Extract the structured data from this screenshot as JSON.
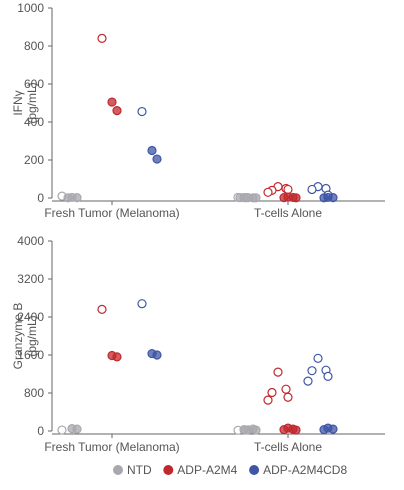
{
  "chart_data": [
    {
      "type": "scatter",
      "title": "",
      "ylabel_lines": [
        "IFNγ",
        "(pg/mL)"
      ],
      "ylim": [
        0,
        1000
      ],
      "yticks": [
        0,
        200,
        400,
        600,
        800,
        1000
      ],
      "categories": [
        "Fresh Tumor (Melanoma)",
        "T-cells Alone"
      ],
      "series": [
        {
          "name": "NTD",
          "points": [
            {
              "category": "Fresh Tumor (Melanoma)",
              "y": 10,
              "filled": false
            },
            {
              "category": "Fresh Tumor (Melanoma)",
              "y": 3,
              "filled": true
            },
            {
              "category": "Fresh Tumor (Melanoma)",
              "y": 2,
              "filled": true
            },
            {
              "category": "Fresh Tumor (Melanoma)",
              "y": 1,
              "filled": true
            },
            {
              "category": "T-cells Alone",
              "y": 3,
              "filled": false
            },
            {
              "category": "T-cells Alone",
              "y": 2,
              "filled": false
            },
            {
              "category": "T-cells Alone",
              "y": 2,
              "filled": true
            },
            {
              "category": "T-cells Alone",
              "y": 1,
              "filled": true
            },
            {
              "category": "T-cells Alone",
              "y": 2,
              "filled": true
            },
            {
              "category": "T-cells Alone",
              "y": 1,
              "filled": true
            },
            {
              "category": "T-cells Alone",
              "y": 2,
              "filled": true
            }
          ]
        },
        {
          "name": "ADP-A2M4",
          "points": [
            {
              "category": "Fresh Tumor (Melanoma)",
              "y": 840,
              "filled": false
            },
            {
              "category": "Fresh Tumor (Melanoma)",
              "y": 505,
              "filled": true
            },
            {
              "category": "Fresh Tumor (Melanoma)",
              "y": 460,
              "filled": true
            },
            {
              "category": "T-cells Alone",
              "y": 60,
              "filled": false
            },
            {
              "category": "T-cells Alone",
              "y": 50,
              "filled": false
            },
            {
              "category": "T-cells Alone",
              "y": 40,
              "filled": false
            },
            {
              "category": "T-cells Alone",
              "y": 45,
              "filled": false
            },
            {
              "category": "T-cells Alone",
              "y": 30,
              "filled": false
            },
            {
              "category": "T-cells Alone",
              "y": 5,
              "filled": true
            },
            {
              "category": "T-cells Alone",
              "y": 3,
              "filled": true
            },
            {
              "category": "T-cells Alone",
              "y": 2,
              "filled": true
            },
            {
              "category": "T-cells Alone",
              "y": 1,
              "filled": true
            }
          ]
        },
        {
          "name": "ADP-A2M4CD8",
          "points": [
            {
              "category": "Fresh Tumor (Melanoma)",
              "y": 455,
              "filled": false
            },
            {
              "category": "Fresh Tumor (Melanoma)",
              "y": 250,
              "filled": true
            },
            {
              "category": "Fresh Tumor (Melanoma)",
              "y": 205,
              "filled": true
            },
            {
              "category": "T-cells Alone",
              "y": 60,
              "filled": false
            },
            {
              "category": "T-cells Alone",
              "y": 50,
              "filled": false
            },
            {
              "category": "T-cells Alone",
              "y": 45,
              "filled": false
            },
            {
              "category": "T-cells Alone",
              "y": 15,
              "filled": false
            },
            {
              "category": "T-cells Alone",
              "y": 3,
              "filled": true
            },
            {
              "category": "T-cells Alone",
              "y": 2,
              "filled": true
            },
            {
              "category": "T-cells Alone",
              "y": 1,
              "filled": true
            }
          ]
        }
      ]
    },
    {
      "type": "scatter",
      "title": "",
      "ylabel_lines": [
        "Granzyme B",
        "(pg/mL)"
      ],
      "ylim": [
        0,
        4000
      ],
      "yticks": [
        0,
        800,
        1600,
        2400,
        3200,
        4000
      ],
      "categories": [
        "Fresh Tumor (Melanoma)",
        "T-cells Alone"
      ],
      "series": [
        {
          "name": "NTD",
          "points": [
            {
              "category": "Fresh Tumor (Melanoma)",
              "y": 20,
              "filled": false
            },
            {
              "category": "Fresh Tumor (Melanoma)",
              "y": 50,
              "filled": true
            },
            {
              "category": "Fresh Tumor (Melanoma)",
              "y": 40,
              "filled": true
            },
            {
              "category": "T-cells Alone",
              "y": 15,
              "filled": false
            },
            {
              "category": "T-cells Alone",
              "y": 20,
              "filled": false
            },
            {
              "category": "T-cells Alone",
              "y": 25,
              "filled": true
            },
            {
              "category": "T-cells Alone",
              "y": 40,
              "filled": true
            },
            {
              "category": "T-cells Alone",
              "y": 30,
              "filled": true
            },
            {
              "category": "T-cells Alone",
              "y": 20,
              "filled": true
            }
          ]
        },
        {
          "name": "ADP-A2M4",
          "points": [
            {
              "category": "Fresh Tumor (Melanoma)",
              "y": 2560,
              "filled": false
            },
            {
              "category": "Fresh Tumor (Melanoma)",
              "y": 1590,
              "filled": true
            },
            {
              "category": "Fresh Tumor (Melanoma)",
              "y": 1560,
              "filled": true
            },
            {
              "category": "T-cells Alone",
              "y": 1240,
              "filled": false
            },
            {
              "category": "T-cells Alone",
              "y": 880,
              "filled": false
            },
            {
              "category": "T-cells Alone",
              "y": 810,
              "filled": false
            },
            {
              "category": "T-cells Alone",
              "y": 710,
              "filled": false
            },
            {
              "category": "T-cells Alone",
              "y": 650,
              "filled": false
            },
            {
              "category": "T-cells Alone",
              "y": 60,
              "filled": true
            },
            {
              "category": "T-cells Alone",
              "y": 40,
              "filled": true
            },
            {
              "category": "T-cells Alone",
              "y": 30,
              "filled": true
            },
            {
              "category": "T-cells Alone",
              "y": 20,
              "filled": true
            }
          ]
        },
        {
          "name": "ADP-A2M4CD8",
          "points": [
            {
              "category": "Fresh Tumor (Melanoma)",
              "y": 2680,
              "filled": false
            },
            {
              "category": "Fresh Tumor (Melanoma)",
              "y": 1630,
              "filled": true
            },
            {
              "category": "Fresh Tumor (Melanoma)",
              "y": 1600,
              "filled": true
            },
            {
              "category": "T-cells Alone",
              "y": 1530,
              "filled": false
            },
            {
              "category": "T-cells Alone",
              "y": 1280,
              "filled": false
            },
            {
              "category": "T-cells Alone",
              "y": 1270,
              "filled": false
            },
            {
              "category": "T-cells Alone",
              "y": 1150,
              "filled": false
            },
            {
              "category": "T-cells Alone",
              "y": 1050,
              "filled": false
            },
            {
              "category": "T-cells Alone",
              "y": 60,
              "filled": true
            },
            {
              "category": "T-cells Alone",
              "y": 40,
              "filled": true
            },
            {
              "category": "T-cells Alone",
              "y": 30,
              "filled": true
            }
          ]
        }
      ]
    }
  ],
  "legend": {
    "placement": "bottom",
    "items": [
      {
        "label": "NTD",
        "color": "#a8a8ae"
      },
      {
        "label": "ADP-A2M4",
        "color": "#c0282d"
      },
      {
        "label": "ADP-A2M4CD8",
        "color": "#3f56a6"
      }
    ]
  },
  "colors": {
    "NTD": "#a8a8ae",
    "ADP-A2M4": "#c0282d",
    "ADP-A2M4CD8": "#3f56a6",
    "axis": "#666666",
    "text": "#555555"
  }
}
